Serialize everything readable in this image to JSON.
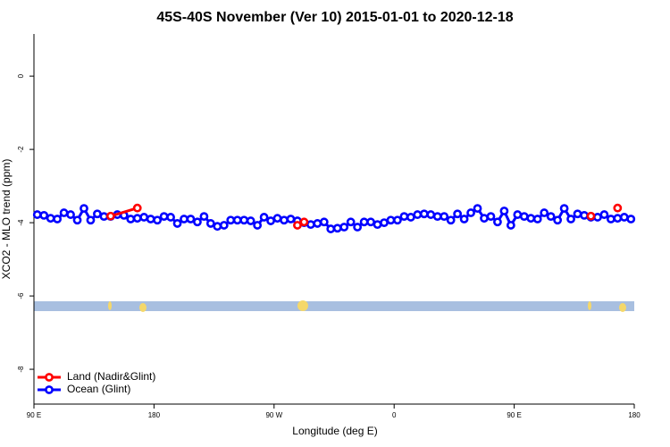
{
  "chart_data": {
    "type": "line",
    "title": "45S-40S November (Ver 10)   2015-01-01 to 2020-12-18",
    "x_label": "Longitude (deg E)",
    "y_label": "XCO2 - MLO trend (ppm)",
    "xlim": [
      90,
      540
    ],
    "ylim": [
      -8.95,
      1.15
    ],
    "xticks": [
      {
        "value": 90,
        "label": "90 E"
      },
      180,
      {
        "value": 270,
        "label": "90 W"
      },
      {
        "value": 360,
        "label": "0"
      },
      {
        "value": 450,
        "label": "90 E"
      },
      {
        "value": 540,
        "label": "180"
      }
    ],
    "yticks": [
      -8,
      -6,
      -4,
      -2,
      0
    ],
    "legend": "bottom-left",
    "series": [
      {
        "name": "Ocean (Glint)",
        "color": "#0000ff",
        "x": [
          92.5,
          97.5,
          102.5,
          107.5,
          112.5,
          117.5,
          122.5,
          127.5,
          132.5,
          137.5,
          142.5,
          147.5,
          152.5,
          157.5,
          162.5,
          167.5,
          172.5,
          177.5,
          182.5,
          187.5,
          192.5,
          197.5,
          202.5,
          207.5,
          212.5,
          217.5,
          222.5,
          227.5,
          232.5,
          237.5,
          242.5,
          247.5,
          252.5,
          257.5,
          262.5,
          267.5,
          272.5,
          277.5,
          282.5,
          287.5,
          292.5,
          297.5,
          302.5,
          307.5,
          312.5,
          317.5,
          322.5,
          327.5,
          332.5,
          337.5,
          342.5,
          347.5,
          352.5,
          357.5,
          362.5,
          367.5,
          372.5,
          377.5,
          382.5,
          387.5,
          392.5,
          397.5,
          402.5,
          407.5,
          412.5,
          417.5,
          422.5,
          427.5,
          432.5,
          437.5,
          442.5,
          447.5,
          452.5,
          457.5,
          462.5,
          467.5,
          472.5,
          477.5,
          482.5,
          487.5,
          492.5,
          497.5,
          502.5,
          507.5,
          512.5,
          517.5,
          522.5,
          527.5,
          532.5,
          537.5
        ],
        "values": [
          -3.78,
          -3.8,
          -3.88,
          -3.9,
          -3.73,
          -3.78,
          -3.93,
          -3.61,
          -3.93,
          -3.76,
          -3.83,
          -3.83,
          -3.78,
          -3.8,
          -3.9,
          -3.88,
          -3.85,
          -3.9,
          -3.93,
          -3.83,
          -3.85,
          -4.02,
          -3.9,
          -3.9,
          -3.98,
          -3.83,
          -4.02,
          -4.1,
          -4.07,
          -3.93,
          -3.93,
          -3.93,
          -3.95,
          -4.07,
          -3.85,
          -3.95,
          -3.88,
          -3.93,
          -3.9,
          -3.95,
          -4.0,
          -4.05,
          -4.02,
          -3.98,
          -4.17,
          -4.15,
          -4.12,
          -3.98,
          -4.12,
          -3.98,
          -3.98,
          -4.05,
          -4.0,
          -3.93,
          -3.93,
          -3.83,
          -3.85,
          -3.78,
          -3.76,
          -3.78,
          -3.83,
          -3.83,
          -3.93,
          -3.76,
          -3.9,
          -3.73,
          -3.61,
          -3.88,
          -3.83,
          -3.98,
          -3.68,
          -4.07,
          -3.78,
          -3.83,
          -3.88,
          -3.9,
          -3.73,
          -3.83,
          -3.93,
          -3.61,
          -3.9,
          -3.76,
          -3.8,
          -3.85,
          -3.85,
          -3.78,
          -3.9,
          -3.88,
          -3.85,
          -3.9
        ]
      },
      {
        "name": "Land (Nadir&Glint)",
        "color": "#ff0000",
        "x": [
          147.5,
          167.5,
          null,
          287.5,
          292.5,
          null,
          507.5,
          null,
          527.5
        ],
        "values": [
          -3.82,
          -3.6,
          null,
          -4.07,
          -3.98,
          null,
          -3.82,
          null,
          -3.6
        ]
      }
    ]
  }
}
